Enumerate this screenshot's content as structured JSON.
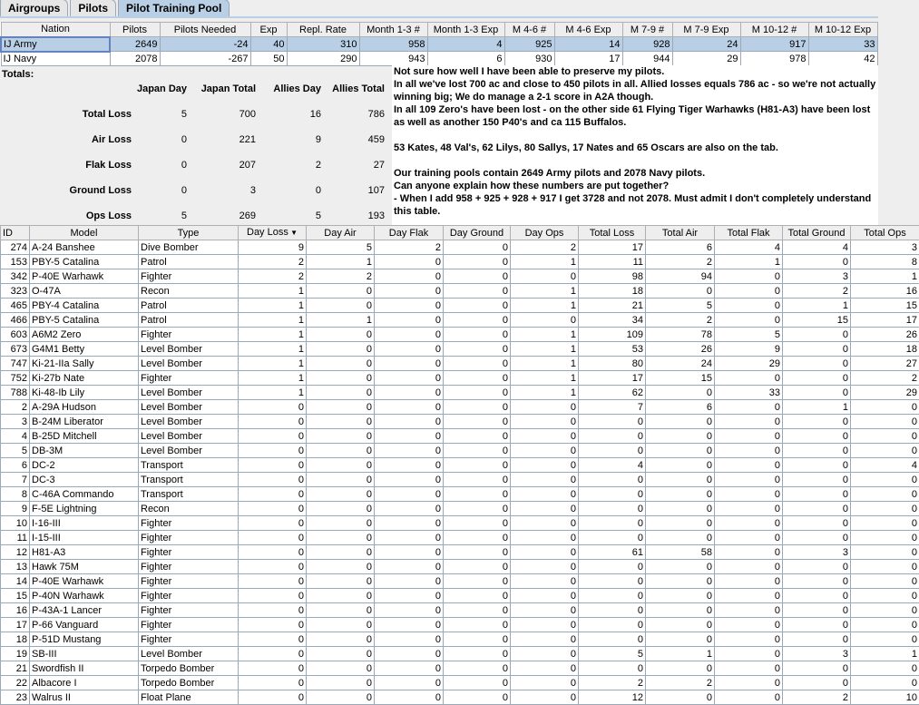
{
  "tabs": [
    "Airgroups",
    "Pilots",
    "Pilot Training Pool"
  ],
  "active_tab": "Pilot Training Pool",
  "pool": {
    "headers": [
      "Nation",
      "Pilots",
      "Pilots Needed",
      "Exp",
      "Repl. Rate",
      "Month 1-3 #",
      "Month 1-3 Exp",
      "M 4-6 #",
      "M 4-6 Exp",
      "M 7-9 #",
      "M 7-9 Exp",
      "M 10-12 #",
      "M 10-12 Exp"
    ],
    "rows": [
      [
        "IJ Army",
        "2649",
        "-24",
        "40",
        "310",
        "958",
        "4",
        "925",
        "14",
        "928",
        "24",
        "917",
        "33"
      ],
      [
        "IJ Navy",
        "2078",
        "-267",
        "50",
        "290",
        "943",
        "6",
        "930",
        "17",
        "944",
        "29",
        "978",
        "42"
      ]
    ]
  },
  "totals": {
    "title": "Totals:",
    "headers": [
      "Japan Day",
      "Japan Total",
      "Allies Day",
      "Allies Total"
    ],
    "rows": [
      [
        "Total Loss",
        "5",
        "700",
        "16",
        "786"
      ],
      [
        "Air Loss",
        "0",
        "221",
        "9",
        "459"
      ],
      [
        "Flak Loss",
        "0",
        "207",
        "2",
        "27"
      ],
      [
        "Ground Loss",
        "0",
        "3",
        "0",
        "107"
      ],
      [
        "Ops Loss",
        "5",
        "269",
        "5",
        "193"
      ]
    ]
  },
  "note": "Not sure how well I have been able to preserve my pilots.\nIn all we've lost 700 ac and close to 450 pilots in all. Allied losses equals 786 ac - so we're not actually winning big; We do manage a 2-1 score in A2A though.\nIn all 109 Zero's have been lost - on the other side 61 Flying Tiger Warhawks (H81-A3) have been lost as well as another 150 P40's and ca 115 Buffalos.\n\n53 Kates, 48 Val's, 62 Lilys, 80 Sallys, 17 Nates and 65 Oscars are also on the tab.\n\nOur training pools contain 2649 Army pilots and 2078 Navy pilots.\nCan anyone explain how these numbers are put together?\n- When I add 958 + 925 + 928 + 917 I get 3728 and not 2078. Must admit I don't completely understand this table.",
  "losses": {
    "headers": [
      "ID",
      "Model",
      "Type",
      "Day Loss",
      "Day Air",
      "Day Flak",
      "Day Ground",
      "Day Ops",
      "Total Loss",
      "Total Air",
      "Total Flak",
      "Total Ground",
      "Total Ops"
    ],
    "sort_column": "Day Loss",
    "rows": [
      [
        "274",
        "A-24 Banshee",
        "Dive Bomber",
        "9",
        "5",
        "2",
        "0",
        "2",
        "17",
        "6",
        "4",
        "4",
        "3"
      ],
      [
        "153",
        "PBY-5 Catalina",
        "Patrol",
        "2",
        "1",
        "0",
        "0",
        "1",
        "11",
        "2",
        "1",
        "0",
        "8"
      ],
      [
        "342",
        "P-40E Warhawk",
        "Fighter",
        "2",
        "2",
        "0",
        "0",
        "0",
        "98",
        "94",
        "0",
        "3",
        "1"
      ],
      [
        "323",
        "O-47A",
        "Recon",
        "1",
        "0",
        "0",
        "0",
        "1",
        "18",
        "0",
        "0",
        "2",
        "16"
      ],
      [
        "465",
        "PBY-4 Catalina",
        "Patrol",
        "1",
        "0",
        "0",
        "0",
        "1",
        "21",
        "5",
        "0",
        "1",
        "15"
      ],
      [
        "466",
        "PBY-5 Catalina",
        "Patrol",
        "1",
        "1",
        "0",
        "0",
        "0",
        "34",
        "2",
        "0",
        "15",
        "17"
      ],
      [
        "603",
        "A6M2 Zero",
        "Fighter",
        "1",
        "0",
        "0",
        "0",
        "1",
        "109",
        "78",
        "5",
        "0",
        "26"
      ],
      [
        "673",
        "G4M1 Betty",
        "Level Bomber",
        "1",
        "0",
        "0",
        "0",
        "1",
        "53",
        "26",
        "9",
        "0",
        "18"
      ],
      [
        "747",
        "Ki-21-IIa Sally",
        "Level Bomber",
        "1",
        "0",
        "0",
        "0",
        "1",
        "80",
        "24",
        "29",
        "0",
        "27"
      ],
      [
        "752",
        "Ki-27b Nate",
        "Fighter",
        "1",
        "0",
        "0",
        "0",
        "1",
        "17",
        "15",
        "0",
        "0",
        "2"
      ],
      [
        "788",
        "Ki-48-Ib Lily",
        "Level Bomber",
        "1",
        "0",
        "0",
        "0",
        "1",
        "62",
        "0",
        "33",
        "0",
        "29"
      ],
      [
        "2",
        "A-29A Hudson",
        "Level Bomber",
        "0",
        "0",
        "0",
        "0",
        "0",
        "7",
        "6",
        "0",
        "1",
        "0"
      ],
      [
        "3",
        "B-24M Liberator",
        "Level Bomber",
        "0",
        "0",
        "0",
        "0",
        "0",
        "0",
        "0",
        "0",
        "0",
        "0"
      ],
      [
        "4",
        "B-25D Mitchell",
        "Level Bomber",
        "0",
        "0",
        "0",
        "0",
        "0",
        "0",
        "0",
        "0",
        "0",
        "0"
      ],
      [
        "5",
        "DB-3M",
        "Level Bomber",
        "0",
        "0",
        "0",
        "0",
        "0",
        "0",
        "0",
        "0",
        "0",
        "0"
      ],
      [
        "6",
        "DC-2",
        "Transport",
        "0",
        "0",
        "0",
        "0",
        "0",
        "4",
        "0",
        "0",
        "0",
        "4"
      ],
      [
        "7",
        "DC-3",
        "Transport",
        "0",
        "0",
        "0",
        "0",
        "0",
        "0",
        "0",
        "0",
        "0",
        "0"
      ],
      [
        "8",
        "C-46A Commando",
        "Transport",
        "0",
        "0",
        "0",
        "0",
        "0",
        "0",
        "0",
        "0",
        "0",
        "0"
      ],
      [
        "9",
        "F-5E Lightning",
        "Recon",
        "0",
        "0",
        "0",
        "0",
        "0",
        "0",
        "0",
        "0",
        "0",
        "0"
      ],
      [
        "10",
        "I-16-III",
        "Fighter",
        "0",
        "0",
        "0",
        "0",
        "0",
        "0",
        "0",
        "0",
        "0",
        "0"
      ],
      [
        "11",
        "I-15-III",
        "Fighter",
        "0",
        "0",
        "0",
        "0",
        "0",
        "0",
        "0",
        "0",
        "0",
        "0"
      ],
      [
        "12",
        "H81-A3",
        "Fighter",
        "0",
        "0",
        "0",
        "0",
        "0",
        "61",
        "58",
        "0",
        "3",
        "0"
      ],
      [
        "13",
        "Hawk 75M",
        "Fighter",
        "0",
        "0",
        "0",
        "0",
        "0",
        "0",
        "0",
        "0",
        "0",
        "0"
      ],
      [
        "14",
        "P-40E Warhawk",
        "Fighter",
        "0",
        "0",
        "0",
        "0",
        "0",
        "0",
        "0",
        "0",
        "0",
        "0"
      ],
      [
        "15",
        "P-40N Warhawk",
        "Fighter",
        "0",
        "0",
        "0",
        "0",
        "0",
        "0",
        "0",
        "0",
        "0",
        "0"
      ],
      [
        "16",
        "P-43A-1 Lancer",
        "Fighter",
        "0",
        "0",
        "0",
        "0",
        "0",
        "0",
        "0",
        "0",
        "0",
        "0"
      ],
      [
        "17",
        "P-66 Vanguard",
        "Fighter",
        "0",
        "0",
        "0",
        "0",
        "0",
        "0",
        "0",
        "0",
        "0",
        "0"
      ],
      [
        "18",
        "P-51D Mustang",
        "Fighter",
        "0",
        "0",
        "0",
        "0",
        "0",
        "0",
        "0",
        "0",
        "0",
        "0"
      ],
      [
        "19",
        "SB-III",
        "Level Bomber",
        "0",
        "0",
        "0",
        "0",
        "0",
        "5",
        "1",
        "0",
        "3",
        "1"
      ],
      [
        "21",
        "Swordfish II",
        "Torpedo Bomber",
        "0",
        "0",
        "0",
        "0",
        "0",
        "0",
        "0",
        "0",
        "0",
        "0"
      ],
      [
        "22",
        "Albacore I",
        "Torpedo Bomber",
        "0",
        "0",
        "0",
        "0",
        "0",
        "2",
        "2",
        "0",
        "0",
        "0"
      ],
      [
        "23",
        "Walrus II",
        "Float Plane",
        "0",
        "0",
        "0",
        "0",
        "0",
        "12",
        "0",
        "0",
        "2",
        "10"
      ]
    ]
  }
}
